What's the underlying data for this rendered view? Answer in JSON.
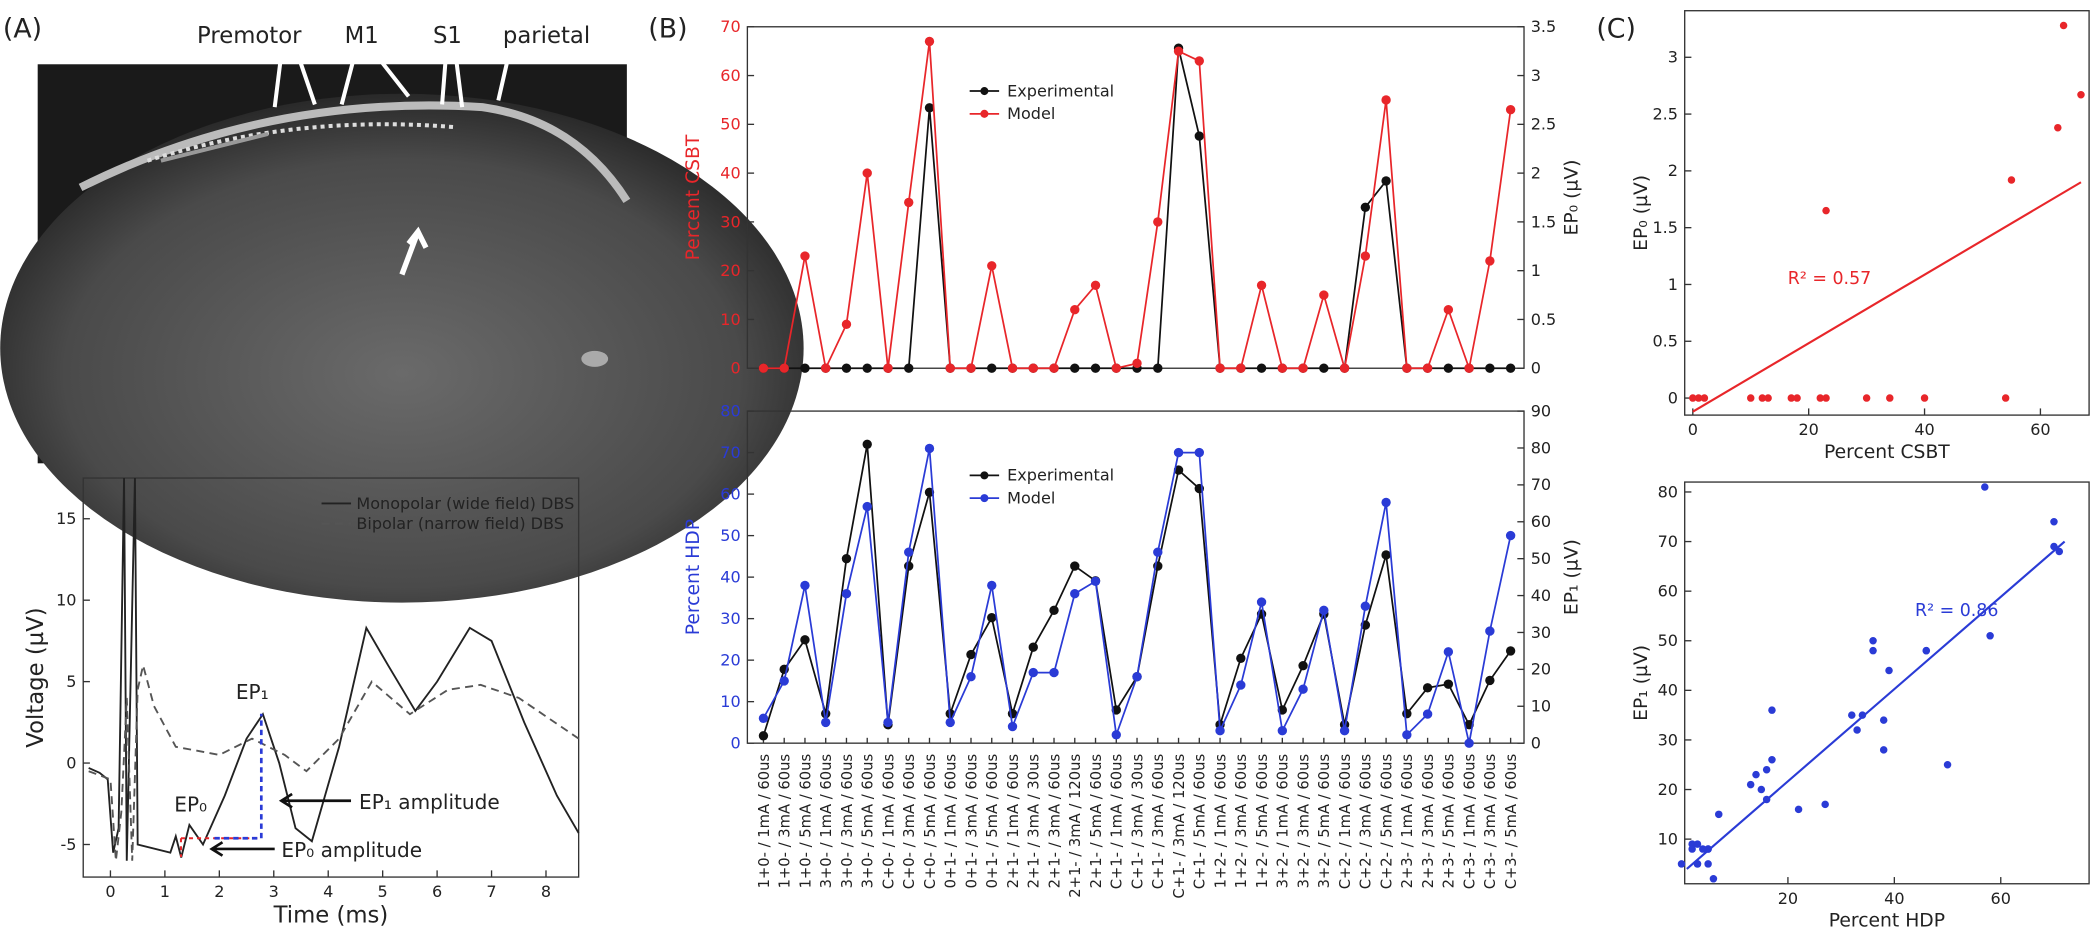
{
  "figure": {
    "panel_labels": [
      "(A)",
      "(B)",
      "(C)"
    ],
    "mri_labels": [
      "Premotor",
      "M1",
      "S1",
      "parietal"
    ]
  },
  "chart_data": [
    {
      "type": "line",
      "xlabel": "Time (ms)",
      "ylabel": "Voltage (µV)",
      "xlim": [
        -0.5,
        8.6
      ],
      "ylim": [
        -7,
        17.5
      ],
      "xticks": [
        0,
        1,
        2,
        3,
        4,
        5,
        6,
        7,
        8
      ],
      "yticks": [
        -5,
        0,
        5,
        10,
        15
      ],
      "annotations": [
        "EP₀",
        "EP₁",
        "EP₁ amplitude",
        "EP₀ amplitude"
      ],
      "series": [
        {
          "name": "Monopolar (wide field) DBS",
          "color": "#222222",
          "style": "solid",
          "x": [
            -0.4,
            -0.2,
            -0.05,
            0.05,
            0.15,
            0.25,
            0.3,
            0.45,
            0.5,
            1.1,
            1.2,
            1.3,
            1.45,
            1.7,
            2.1,
            2.5,
            2.8,
            3.1,
            3.4,
            3.7,
            4.2,
            4.7,
            5.1,
            5.6,
            6.0,
            6.6,
            7.0,
            7.6,
            8.2,
            8.6
          ],
          "values": [
            -0.3,
            -0.6,
            -1,
            -5.5,
            -4,
            17.5,
            -6,
            17.5,
            -5,
            -5.5,
            -4.5,
            -5.8,
            -3.8,
            -5,
            -2,
            1.5,
            3,
            0,
            -4,
            -4.8,
            1,
            8.3,
            6,
            3.2,
            5,
            8.3,
            7.5,
            2.5,
            -2,
            -4.3
          ]
        },
        {
          "name": "Bipolar (narrow field) DBS",
          "color": "#555555",
          "style": "dashed",
          "x": [
            -0.4,
            0,
            0.1,
            0.2,
            0.3,
            0.4,
            0.5,
            0.6,
            0.8,
            1.2,
            2.0,
            2.6,
            3.2,
            3.6,
            4.2,
            4.8,
            5.5,
            6.2,
            6.8,
            7.5,
            8.6
          ],
          "values": [
            -0.5,
            -1,
            -6,
            -3,
            4,
            -6,
            4.5,
            6,
            3.5,
            1,
            0.5,
            1.5,
            0.5,
            -0.5,
            1.5,
            5,
            3,
            4.5,
            4.8,
            4,
            1.5
          ]
        }
      ]
    },
    {
      "type": "line",
      "ylabel": "Percent CSBT",
      "y2label": "EP₀ (µV)",
      "ylim": [
        0,
        70
      ],
      "yticks": [
        0,
        10,
        20,
        30,
        40,
        50,
        60,
        70
      ],
      "y2lim": [
        0,
        3.5
      ],
      "y2ticks": [
        0,
        0.5,
        1,
        1.5,
        2,
        2.5,
        3,
        3.5
      ],
      "series": [
        {
          "name": "Experimental",
          "color": "#111111",
          "axis": "y2",
          "values": [
            0,
            0,
            0,
            0,
            0,
            0,
            0,
            0,
            2.67,
            0,
            0,
            0,
            0,
            0,
            0,
            0,
            0,
            0,
            0,
            0,
            3.28,
            2.38,
            0,
            0,
            0,
            0,
            0,
            0,
            0,
            1.65,
            1.92,
            0,
            0,
            0,
            0,
            0,
            0
          ]
        },
        {
          "name": "Model",
          "color": "#e8262a",
          "values": [
            0,
            0,
            23,
            0,
            9,
            40,
            0,
            34,
            67,
            0,
            0,
            21,
            0,
            0,
            0,
            12,
            17,
            0,
            1,
            30,
            65,
            63,
            0,
            0,
            17,
            0,
            0,
            15,
            0,
            23,
            55,
            0,
            0,
            12,
            0,
            22,
            53
          ]
        }
      ]
    },
    {
      "type": "line",
      "ylabel": "Percent HDP",
      "y2label": "EP₁ (µV)",
      "ylim": [
        0,
        80
      ],
      "yticks": [
        0,
        10,
        20,
        30,
        40,
        50,
        60,
        70,
        80
      ],
      "y2lim": [
        0,
        90
      ],
      "y2ticks": [
        0,
        10,
        20,
        30,
        40,
        50,
        60,
        70,
        80,
        90
      ],
      "categories": [
        "1+0- / 1mA / 60us",
        "1+0- / 3mA / 60us",
        "1+0- / 5mA / 60us",
        "3+0- / 1mA / 60us",
        "3+0- / 3mA / 60us",
        "3+0- / 5mA / 60us",
        "C+0- / 1mA / 60us",
        "C+0- / 3mA / 60us",
        "C+0- / 5mA / 60us",
        "0+1- / 1mA / 60us",
        "0+1- / 3mA / 60us",
        "0+1- / 5mA / 60us",
        "2+1- / 1mA / 60us",
        "2+1- / 3mA / 30us",
        "2+1- / 3mA / 60us",
        "2+1- / 3mA / 120us",
        "2+1- / 5mA / 60us",
        "C+1- / 1mA / 60us",
        "C+1- / 3mA / 30us",
        "C+1- / 3mA / 60us",
        "C+1- / 3mA / 120us",
        "C+1- / 5mA / 60us",
        "1+2- / 1mA / 60us",
        "1+2- / 3mA / 60us",
        "1+2- / 5mA / 60us",
        "3+2- / 1mA / 60us",
        "3+2- / 3mA / 60us",
        "3+2- / 5mA / 60us",
        "C+2- / 1mA / 60us",
        "C+2- / 3mA / 60us",
        "C+2- / 5mA / 60us",
        "2+3- / 1mA / 60us",
        "2+3- / 3mA / 60us",
        "2+3- / 5mA / 60us",
        "C+3- / 1mA / 60us",
        "C+3- / 3mA / 60us",
        "C+3- / 5mA / 60us"
      ],
      "series": [
        {
          "name": "Experimental",
          "color": "#111111",
          "axis": "y2",
          "values": [
            2,
            20,
            28,
            8,
            50,
            81,
            5,
            48,
            68,
            8,
            24,
            34,
            8,
            26,
            36,
            48,
            44,
            9,
            18,
            48,
            74,
            69,
            5,
            23,
            35,
            9,
            21,
            35,
            5,
            32,
            51,
            8,
            15,
            16,
            5,
            17,
            25
          ]
        },
        {
          "name": "Model",
          "color": "#2a3bd6",
          "values": [
            6,
            15,
            38,
            5,
            36,
            57,
            5,
            46,
            71,
            5,
            16,
            38,
            4,
            17,
            17,
            36,
            39,
            2,
            16,
            46,
            70,
            70,
            3,
            14,
            34,
            3,
            13,
            32,
            3,
            33,
            58,
            2,
            7,
            22,
            0,
            27,
            50
          ]
        }
      ]
    },
    {
      "type": "scatter",
      "color": "#e8262a",
      "xlabel": "Percent CSBT",
      "ylabel": "EP₀ (µV)",
      "annotation": "R² = 0.57",
      "xlim": [
        -1.4,
        68.4
      ],
      "ylim": [
        -0.15,
        3.41
      ],
      "xticks": [
        0,
        20,
        40,
        60
      ],
      "yticks": [
        0,
        0.5,
        1,
        1.5,
        2,
        2.5,
        3
      ],
      "x": [
        0,
        1,
        2,
        10,
        12,
        13,
        17,
        18,
        22,
        23,
        30,
        34,
        40,
        54,
        23,
        55,
        63,
        64,
        67
      ],
      "values": [
        0,
        0,
        0,
        0,
        0,
        0,
        0,
        0,
        0,
        0,
        0,
        0,
        0,
        0,
        1.65,
        1.92,
        2.38,
        3.28,
        2.67
      ],
      "fit": {
        "x": [
          0,
          67
        ],
        "y": [
          -0.12,
          1.9
        ]
      }
    },
    {
      "type": "scatter",
      "color": "#2a3bd6",
      "xlabel": "Percent HDP",
      "ylabel": "EP₁ (µV)",
      "annotation": "R² = 0.86",
      "xlim": [
        0.6,
        76.6
      ],
      "ylim": [
        1,
        82
      ],
      "xticks": [
        20,
        40,
        60
      ],
      "yticks": [
        10,
        20,
        30,
        40,
        50,
        60,
        70,
        80
      ],
      "x": [
        6,
        15,
        38,
        5,
        36,
        57,
        5,
        46,
        71,
        5,
        16,
        38,
        4,
        17,
        17,
        36,
        39,
        2,
        16,
        46,
        70,
        70,
        3,
        14,
        34,
        3,
        13,
        32,
        3,
        33,
        58,
        2,
        7,
        22,
        0,
        27,
        50
      ],
      "values": [
        2,
        20,
        28,
        8,
        50,
        81,
        5,
        48,
        68,
        8,
        24,
        34,
        8,
        26,
        36,
        48,
        44,
        9,
        18,
        48,
        74,
        69,
        5,
        23,
        35,
        9,
        21,
        35,
        5,
        32,
        51,
        8,
        15,
        16,
        5,
        17,
        25
      ],
      "fit": {
        "x": [
          1,
          72
        ],
        "y": [
          4,
          70
        ]
      }
    }
  ]
}
